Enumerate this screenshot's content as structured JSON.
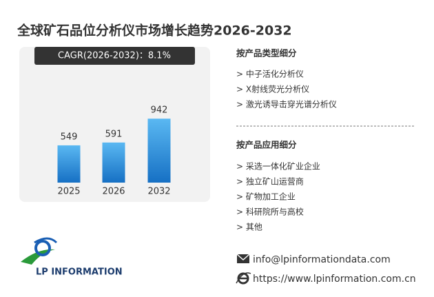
{
  "chart_data": {
    "type": "bar",
    "title": "全球矿石品位分析仪市场增长趋势2026-2032",
    "cagr": "CAGR(2026-2032)：8.1%",
    "categories": [
      "2025",
      "2026",
      "2032"
    ],
    "values": [
      549,
      591,
      942
    ],
    "color": "#2a8ad8"
  },
  "product_types": {
    "heading": "按产品类型细分",
    "items": [
      "> 中子活化分析仪",
      "> X射线荧光分析仪",
      "> 激光诱导击穿光谱分析仪"
    ]
  },
  "applications": {
    "heading": "按产品应用细分",
    "items": [
      "> 采选一体化矿业企业",
      "> 独立矿山运营商",
      "> 矿物加工企业",
      "> 科研院所与高校",
      "> 其他"
    ]
  },
  "contact": {
    "email": "info@lpinformationdata.com",
    "website": "https://www.lpinformation.com.cn"
  },
  "logo": {
    "text": "LP INFORMATION"
  }
}
